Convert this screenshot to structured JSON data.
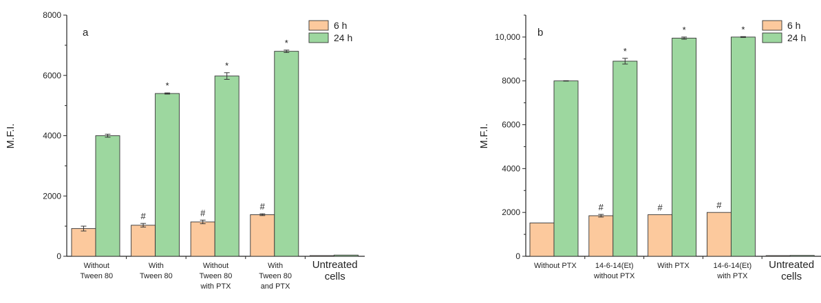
{
  "chart_data": [
    {
      "type": "bar",
      "panel_label": "a",
      "ylabel": "M.F.I.",
      "ylim": [
        0,
        8000
      ],
      "y_ticks": [
        "0",
        "2000",
        "4000",
        "6000",
        "8000"
      ],
      "y_tick_values": [
        0,
        2000,
        4000,
        6000,
        8000
      ],
      "categories": [
        [
          "Without",
          "Tween 80"
        ],
        [
          "With",
          "Tween 80"
        ],
        [
          "Without",
          "Tween 80",
          "with PTX"
        ],
        [
          "With",
          "Tween 80",
          "and PTX"
        ],
        [
          "Untreated",
          "cells"
        ]
      ],
      "category_large": [
        false,
        false,
        false,
        false,
        true
      ],
      "series": [
        {
          "name": "6 h",
          "values": [
            920,
            1030,
            1140,
            1380,
            20
          ],
          "errors": [
            80,
            60,
            60,
            30,
            0
          ],
          "annotations": [
            "",
            "#",
            "#",
            "#",
            ""
          ]
        },
        {
          "name": "24 h",
          "values": [
            4000,
            5400,
            5980,
            6800,
            40
          ],
          "errors": [
            50,
            20,
            110,
            40,
            0
          ],
          "annotations": [
            "",
            "*",
            "*",
            "*",
            ""
          ]
        }
      ],
      "legend_position": "top-right"
    },
    {
      "type": "bar",
      "panel_label": "b",
      "ylabel": "M.F.I.",
      "ylim": [
        0,
        11000
      ],
      "y_ticks": [
        "0",
        "2000",
        "4000",
        "6000",
        "8000",
        "10,000"
      ],
      "y_tick_values": [
        0,
        2000,
        4000,
        6000,
        8000,
        10000
      ],
      "categories": [
        [
          "Without PTX"
        ],
        [
          "14-6-14(Et)",
          "without PTX"
        ],
        [
          "With PTX"
        ],
        [
          "14-6-14(Et)",
          "with PTX"
        ],
        [
          "Untreated",
          "cells"
        ]
      ],
      "category_large": [
        false,
        false,
        false,
        false,
        true
      ],
      "series": [
        {
          "name": "6 h",
          "values": [
            1520,
            1850,
            1900,
            2000,
            20
          ],
          "errors": [
            0,
            60,
            0,
            0,
            0
          ],
          "annotations": [
            "",
            "#",
            "#",
            "#",
            ""
          ]
        },
        {
          "name": "24 h",
          "values": [
            8000,
            8900,
            9950,
            10000,
            40
          ],
          "errors": [
            10,
            130,
            50,
            20,
            0
          ],
          "annotations": [
            "",
            "*",
            "*",
            "*",
            ""
          ]
        }
      ],
      "legend_position": "top-right"
    }
  ],
  "colors": {
    "six_h": "#fcc99d",
    "twentyfour_h": "#9dd79f",
    "axis": "#222222"
  }
}
